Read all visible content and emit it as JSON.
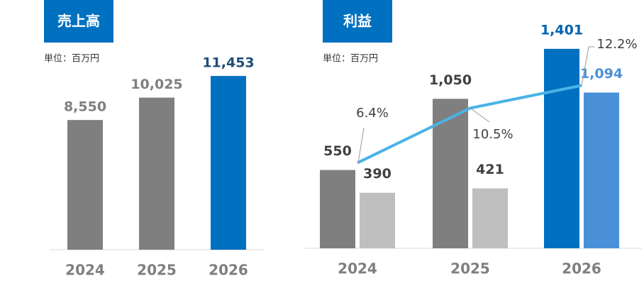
{
  "chart_data": [
    {
      "type": "bar",
      "title": "売上高",
      "subtitle": "単位：百万円",
      "categories": [
        "2024",
        "2025",
        "2026"
      ],
      "values": [
        8550,
        10025,
        11453
      ],
      "value_labels": [
        "8,550",
        "10,025",
        "11,453"
      ],
      "colors": [
        "#7f7f7f",
        "#7f7f7f",
        "#0070c0"
      ],
      "label_colors": [
        "#7f7f7f",
        "#7f7f7f",
        "#1f4e79"
      ],
      "ylim": [
        0,
        13000
      ]
    },
    {
      "type": "bar",
      "title": "利益",
      "subtitle": "単位：百万円",
      "categories": [
        "2024",
        "2025",
        "2026"
      ],
      "series": [
        {
          "values": [
            550,
            1050,
            1401
          ],
          "value_labels": [
            "550",
            "1,050",
            "1,401"
          ],
          "colors": [
            "#7f7f7f",
            "#7f7f7f",
            "#0070c0"
          ],
          "label_colors": [
            "#404040",
            "#404040",
            "#0063b0"
          ]
        },
        {
          "values": [
            390,
            421,
            1094
          ],
          "value_labels": [
            "390",
            "421",
            "1,094"
          ],
          "colors": [
            "#bfbfbf",
            "#bfbfbf",
            "#4a90d9"
          ],
          "label_colors": [
            "#404040",
            "#404040",
            "#4a90d9"
          ]
        },
        {
          "type": "line",
          "axis": "y2",
          "values": [
            6.4,
            10.5,
            12.2
          ],
          "value_labels": [
            "6.4%",
            "10.5%",
            "12.2%"
          ],
          "color": "#4ab3e6"
        }
      ],
      "ylim": [
        0,
        1500
      ],
      "y2lim": [
        0,
        16
      ]
    }
  ]
}
